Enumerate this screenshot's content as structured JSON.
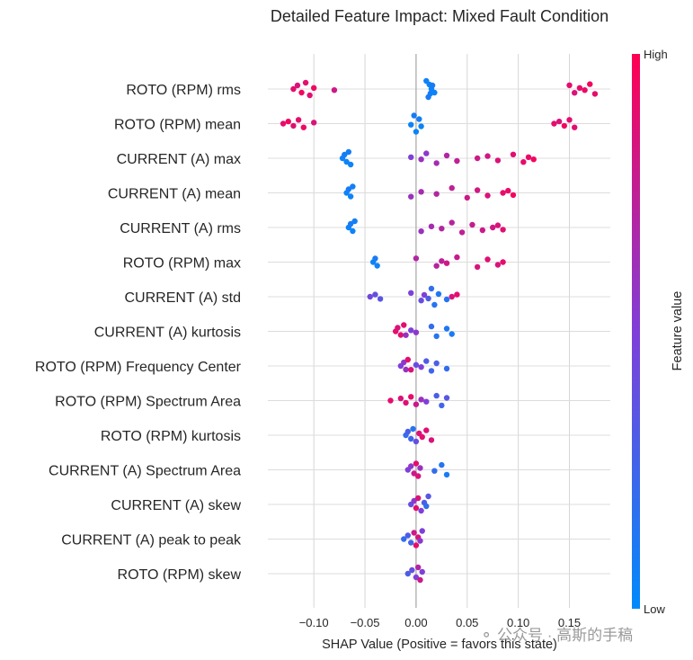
{
  "chart_data": {
    "type": "scatter",
    "subtype": "shap-beeswarm",
    "title": "Detailed Feature Impact: Mixed Fault Condition",
    "xlabel": "SHAP Value (Positive = favors this state)",
    "xlim": [
      -0.145,
      0.19
    ],
    "xticks": [
      -0.1,
      -0.05,
      0.0,
      0.05,
      0.1,
      0.15
    ],
    "xtick_labels": [
      "−0.10",
      "−0.05",
      "0.00",
      "0.05",
      "0.10",
      "0.15"
    ],
    "grid": true,
    "colorbar": {
      "label": "Feature value",
      "high_label": "High",
      "low_label": "Low",
      "low_color": "#008afb",
      "mid_color": "#7f3fd8",
      "high_color": "#ff0052"
    },
    "features": [
      {
        "name": "ROTO (RPM) rms",
        "points": [
          [
            -0.12,
            0.9
          ],
          [
            -0.116,
            0.85
          ],
          [
            -0.112,
            0.95
          ],
          [
            -0.108,
            0.9
          ],
          [
            -0.104,
            0.88
          ],
          [
            -0.1,
            0.95
          ],
          [
            -0.08,
            0.8
          ],
          [
            0.01,
            0.05
          ],
          [
            0.012,
            0.1
          ],
          [
            0.013,
            0.05
          ],
          [
            0.014,
            0.08
          ],
          [
            0.015,
            0.05
          ],
          [
            0.016,
            0.1
          ],
          [
            0.018,
            0.05
          ],
          [
            0.15,
            0.9
          ],
          [
            0.155,
            0.85
          ],
          [
            0.16,
            0.9
          ],
          [
            0.165,
            0.92
          ],
          [
            0.17,
            0.95
          ],
          [
            0.175,
            0.9
          ]
        ]
      },
      {
        "name": "ROTO (RPM) mean",
        "points": [
          [
            -0.13,
            0.9
          ],
          [
            -0.125,
            0.95
          ],
          [
            -0.12,
            0.88
          ],
          [
            -0.115,
            0.9
          ],
          [
            -0.11,
            0.92
          ],
          [
            -0.1,
            0.85
          ],
          [
            -0.005,
            0.05
          ],
          [
            -0.002,
            0.1
          ],
          [
            0.0,
            0.05
          ],
          [
            0.003,
            0.08
          ],
          [
            0.005,
            0.05
          ],
          [
            0.135,
            0.9
          ],
          [
            0.14,
            0.85
          ],
          [
            0.145,
            0.95
          ],
          [
            0.15,
            0.9
          ],
          [
            0.155,
            0.88
          ]
        ]
      },
      {
        "name": "CURRENT (A) max",
        "points": [
          [
            -0.072,
            0.05
          ],
          [
            -0.07,
            0.1
          ],
          [
            -0.068,
            0.05
          ],
          [
            -0.066,
            0.08
          ],
          [
            -0.064,
            0.05
          ],
          [
            -0.005,
            0.5
          ],
          [
            0.005,
            0.6
          ],
          [
            0.01,
            0.55
          ],
          [
            0.02,
            0.65
          ],
          [
            0.03,
            0.7
          ],
          [
            0.04,
            0.75
          ],
          [
            0.06,
            0.8
          ],
          [
            0.07,
            0.82
          ],
          [
            0.08,
            0.85
          ],
          [
            0.095,
            0.88
          ],
          [
            0.105,
            0.9
          ],
          [
            0.11,
            0.92
          ],
          [
            0.115,
            0.95
          ]
        ]
      },
      {
        "name": "CURRENT (A) mean",
        "points": [
          [
            -0.068,
            0.05
          ],
          [
            -0.066,
            0.1
          ],
          [
            -0.064,
            0.05
          ],
          [
            -0.062,
            0.08
          ],
          [
            -0.005,
            0.6
          ],
          [
            0.005,
            0.65
          ],
          [
            0.02,
            0.7
          ],
          [
            0.035,
            0.75
          ],
          [
            0.05,
            0.8
          ],
          [
            0.06,
            0.82
          ],
          [
            0.07,
            0.85
          ],
          [
            0.085,
            0.9
          ],
          [
            0.09,
            0.92
          ],
          [
            0.095,
            0.95
          ]
        ]
      },
      {
        "name": "CURRENT (A) rms",
        "points": [
          [
            -0.066,
            0.05
          ],
          [
            -0.064,
            0.1
          ],
          [
            -0.062,
            0.05
          ],
          [
            -0.06,
            0.08
          ],
          [
            0.005,
            0.6
          ],
          [
            0.015,
            0.65
          ],
          [
            0.025,
            0.7
          ],
          [
            0.035,
            0.72
          ],
          [
            0.045,
            0.75
          ],
          [
            0.055,
            0.78
          ],
          [
            0.065,
            0.8
          ],
          [
            0.075,
            0.82
          ],
          [
            0.08,
            0.85
          ],
          [
            0.085,
            0.88
          ]
        ]
      },
      {
        "name": "ROTO (RPM) max",
        "points": [
          [
            -0.042,
            0.05
          ],
          [
            -0.04,
            0.1
          ],
          [
            -0.038,
            0.05
          ],
          [
            0.0,
            0.7
          ],
          [
            0.02,
            0.72
          ],
          [
            0.025,
            0.75
          ],
          [
            0.03,
            0.8
          ],
          [
            0.04,
            0.78
          ],
          [
            0.06,
            0.85
          ],
          [
            0.07,
            0.88
          ],
          [
            0.08,
            0.85
          ],
          [
            0.085,
            0.9
          ]
        ]
      },
      {
        "name": "CURRENT (A) std",
        "points": [
          [
            -0.045,
            0.45
          ],
          [
            -0.04,
            0.4
          ],
          [
            -0.035,
            0.35
          ],
          [
            -0.005,
            0.5
          ],
          [
            0.005,
            0.4
          ],
          [
            0.008,
            0.5
          ],
          [
            0.012,
            0.3
          ],
          [
            0.015,
            0.2
          ],
          [
            0.018,
            0.15
          ],
          [
            0.022,
            0.12
          ],
          [
            0.03,
            0.15
          ],
          [
            0.035,
            0.85
          ],
          [
            0.04,
            0.9
          ]
        ]
      },
      {
        "name": "CURRENT (A) kurtosis",
        "points": [
          [
            -0.02,
            0.9
          ],
          [
            -0.018,
            0.85
          ],
          [
            -0.015,
            0.88
          ],
          [
            -0.012,
            0.9
          ],
          [
            -0.01,
            0.6
          ],
          [
            -0.005,
            0.5
          ],
          [
            0.0,
            0.55
          ],
          [
            0.015,
            0.2
          ],
          [
            0.02,
            0.15
          ],
          [
            0.03,
            0.12
          ],
          [
            0.035,
            0.1
          ]
        ]
      },
      {
        "name": "ROTO (RPM) Frequency Center",
        "points": [
          [
            -0.015,
            0.5
          ],
          [
            -0.012,
            0.55
          ],
          [
            -0.01,
            0.6
          ],
          [
            -0.008,
            0.9
          ],
          [
            -0.005,
            0.85
          ],
          [
            0.0,
            0.4
          ],
          [
            0.005,
            0.5
          ],
          [
            0.01,
            0.3
          ],
          [
            0.015,
            0.25
          ],
          [
            0.02,
            0.3
          ],
          [
            0.03,
            0.2
          ]
        ]
      },
      {
        "name": "ROTO (RPM) Spectrum Area",
        "points": [
          [
            -0.025,
            0.9
          ],
          [
            -0.015,
            0.85
          ],
          [
            -0.01,
            0.88
          ],
          [
            -0.005,
            0.9
          ],
          [
            0.0,
            0.8
          ],
          [
            0.005,
            0.6
          ],
          [
            0.01,
            0.5
          ],
          [
            0.02,
            0.3
          ],
          [
            0.025,
            0.25
          ],
          [
            0.03,
            0.35
          ]
        ]
      },
      {
        "name": "ROTO (RPM) kurtosis",
        "points": [
          [
            -0.01,
            0.2
          ],
          [
            -0.008,
            0.3
          ],
          [
            -0.005,
            0.25
          ],
          [
            -0.003,
            0.15
          ],
          [
            0.0,
            0.4
          ],
          [
            0.003,
            0.85
          ],
          [
            0.006,
            0.9
          ],
          [
            0.01,
            0.88
          ],
          [
            0.015,
            0.85
          ]
        ]
      },
      {
        "name": "CURRENT (A) Spectrum Area",
        "points": [
          [
            -0.008,
            0.5
          ],
          [
            -0.005,
            0.55
          ],
          [
            -0.002,
            0.8
          ],
          [
            0.0,
            0.9
          ],
          [
            0.002,
            0.85
          ],
          [
            0.004,
            0.6
          ],
          [
            0.018,
            0.2
          ],
          [
            0.025,
            0.15
          ],
          [
            0.03,
            0.1
          ]
        ]
      },
      {
        "name": "CURRENT (A) skew",
        "points": [
          [
            -0.005,
            0.4
          ],
          [
            -0.002,
            0.55
          ],
          [
            0.0,
            0.9
          ],
          [
            0.002,
            0.85
          ],
          [
            0.005,
            0.5
          ],
          [
            0.008,
            0.3
          ],
          [
            0.01,
            0.2
          ],
          [
            0.012,
            0.35
          ]
        ]
      },
      {
        "name": "CURRENT (A) peak to peak",
        "points": [
          [
            -0.012,
            0.2
          ],
          [
            -0.008,
            0.3
          ],
          [
            -0.005,
            0.25
          ],
          [
            -0.002,
            0.8
          ],
          [
            0.0,
            0.9
          ],
          [
            0.002,
            0.85
          ],
          [
            0.004,
            0.55
          ],
          [
            0.006,
            0.5
          ]
        ]
      },
      {
        "name": "ROTO (RPM) skew",
        "points": [
          [
            -0.008,
            0.3
          ],
          [
            -0.004,
            0.4
          ],
          [
            0.0,
            0.5
          ],
          [
            0.002,
            0.7
          ],
          [
            0.004,
            0.8
          ],
          [
            0.006,
            0.5
          ]
        ]
      }
    ]
  }
}
